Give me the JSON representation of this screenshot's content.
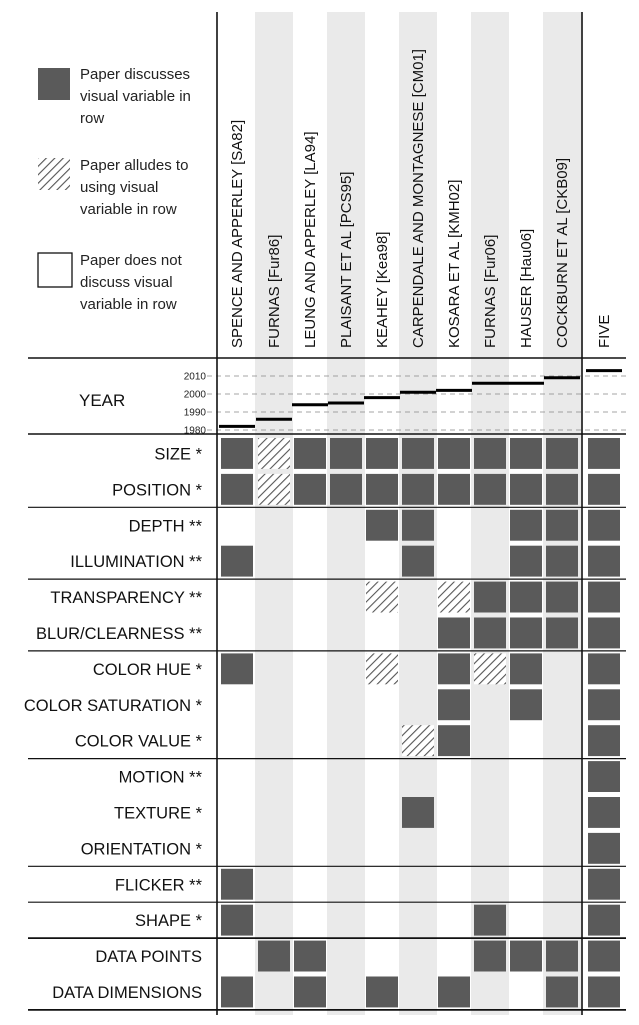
{
  "colors": {
    "discussed": "#5a5a5a",
    "stripe_bg": "#eaeaea",
    "hatch": "#555555",
    "lines": "#111111",
    "grid_dash": "#888888"
  },
  "legend": {
    "discussed": "Paper discusses visual variable in row",
    "discussed_lines": [
      "Paper discusses",
      "visual variable in",
      "row"
    ],
    "alludes": "Paper alludes to using visual variable in row",
    "alludes_lines": [
      "Paper alludes to",
      "using visual",
      "variable in row"
    ],
    "none": "Paper does not discuss visual variable in row",
    "none_lines": [
      "Paper does not",
      "discuss visual",
      "variable in row"
    ]
  },
  "columns": [
    "SPENCE AND APPERLEY [SA82]",
    "FURNAS [Fur86]",
    "LEUNG AND APPERLEY [LA94]",
    "PLAISANT ET AL [PCS95]",
    "KEAHEY [Kea98]",
    "CARPENDALE AND MONTAGNESE [CM01]",
    "KOSARA ET AL [KMH02]",
    "FURNAS [Fur06]",
    "HAUSER [Hau06]",
    "COCKBURN ET AL [CKB09]",
    "FIVE"
  ],
  "year_label": "YEAR",
  "year_ticks": [
    "2010",
    "2000",
    "1990",
    "1980"
  ],
  "years": [
    1982,
    1986,
    1994,
    1995,
    1998,
    2001,
    2002,
    2006,
    2006,
    2009,
    2013
  ],
  "groups": [
    {
      "rows": [
        {
          "label": "SIZE *",
          "cells": [
            1,
            2,
            1,
            1,
            1,
            1,
            1,
            1,
            1,
            1,
            1
          ]
        },
        {
          "label": "POSITION *",
          "cells": [
            1,
            2,
            1,
            1,
            1,
            1,
            1,
            1,
            1,
            1,
            1
          ]
        }
      ]
    },
    {
      "rows": [
        {
          "label": "DEPTH **",
          "cells": [
            0,
            0,
            0,
            0,
            1,
            1,
            0,
            0,
            1,
            1,
            1
          ]
        },
        {
          "label": "ILLUMINATION **",
          "cells": [
            1,
            0,
            0,
            0,
            0,
            1,
            0,
            0,
            1,
            1,
            1
          ]
        }
      ]
    },
    {
      "rows": [
        {
          "label": "TRANSPARENCY **",
          "cells": [
            0,
            0,
            0,
            0,
            2,
            0,
            2,
            1,
            1,
            1,
            1
          ]
        },
        {
          "label": "BLUR/CLEARNESS **",
          "cells": [
            0,
            0,
            0,
            0,
            0,
            0,
            1,
            1,
            1,
            1,
            1
          ]
        }
      ]
    },
    {
      "rows": [
        {
          "label": "COLOR HUE *",
          "cells": [
            1,
            0,
            0,
            0,
            2,
            0,
            1,
            2,
            1,
            0,
            1
          ]
        },
        {
          "label": "COLOR SATURATION *",
          "cells": [
            0,
            0,
            0,
            0,
            0,
            0,
            1,
            0,
            1,
            0,
            1
          ]
        },
        {
          "label": "COLOR VALUE *",
          "cells": [
            0,
            0,
            0,
            0,
            0,
            2,
            1,
            0,
            0,
            0,
            1
          ]
        }
      ]
    },
    {
      "rows": [
        {
          "label": "MOTION **",
          "cells": [
            0,
            0,
            0,
            0,
            0,
            0,
            0,
            0,
            0,
            0,
            1
          ]
        },
        {
          "label": "TEXTURE *",
          "cells": [
            0,
            0,
            0,
            0,
            0,
            1,
            0,
            0,
            0,
            0,
            1
          ]
        },
        {
          "label": "ORIENTATION *",
          "cells": [
            0,
            0,
            0,
            0,
            0,
            0,
            0,
            0,
            0,
            0,
            1
          ]
        }
      ]
    },
    {
      "rows": [
        {
          "label": "FLICKER **",
          "cells": [
            1,
            0,
            0,
            0,
            0,
            0,
            0,
            0,
            0,
            0,
            1
          ]
        }
      ]
    },
    {
      "rows": [
        {
          "label": "SHAPE *",
          "cells": [
            1,
            0,
            0,
            0,
            0,
            0,
            0,
            1,
            0,
            0,
            1
          ]
        }
      ]
    },
    {
      "rows": [
        {
          "label": "DATA POINTS",
          "cells": [
            0,
            1,
            1,
            0,
            0,
            0,
            0,
            1,
            1,
            1,
            1
          ]
        },
        {
          "label": "DATA DIMENSIONS",
          "cells": [
            1,
            0,
            1,
            0,
            1,
            0,
            1,
            0,
            0,
            1,
            1
          ]
        }
      ]
    }
  ]
}
